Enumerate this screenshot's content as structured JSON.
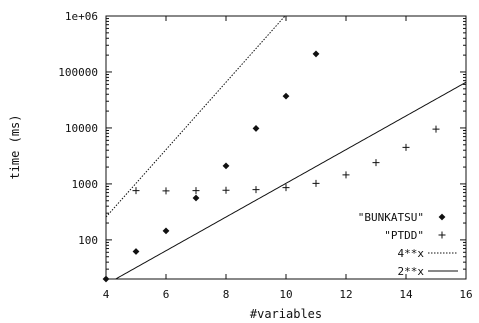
{
  "chart_data": {
    "type": "scatter",
    "title": "",
    "xlabel": "#variables",
    "ylabel": "time (ms)",
    "xlim": [
      4,
      16
    ],
    "ylim": [
      20,
      1000000
    ],
    "yscale": "log",
    "grid": false,
    "legend_position": "bottom-right",
    "x_ticks": [
      4,
      6,
      8,
      10,
      12,
      14,
      16
    ],
    "x_tick_labels": [
      "4",
      "6",
      "8",
      "10",
      "12",
      "14",
      "16"
    ],
    "y_ticks": [
      100,
      1000,
      10000,
      100000,
      1000000
    ],
    "y_tick_labels": [
      "100",
      "1000",
      "10000",
      "100000",
      "1e+06"
    ],
    "series": [
      {
        "name": "\"BUNKATSU\"",
        "marker": "diamond",
        "x": [
          4,
          5,
          6,
          7,
          8,
          9,
          10,
          11
        ],
        "y": [
          20,
          62,
          145,
          560,
          2100,
          9800,
          37000,
          210000
        ]
      },
      {
        "name": "\"PTDD\"",
        "marker": "plus",
        "x": [
          5,
          6,
          7,
          8,
          9,
          10,
          11,
          12,
          13,
          14,
          15
        ],
        "y": [
          760,
          750,
          760,
          770,
          790,
          860,
          1020,
          1450,
          2400,
          4500,
          9500
        ]
      },
      {
        "name": "4**x",
        "style": "dotted",
        "function": "4**x",
        "x": [
          4,
          5,
          6,
          7,
          8,
          9,
          10
        ],
        "y": [
          256,
          1024,
          4096,
          16384,
          65536,
          262144,
          1048576
        ]
      },
      {
        "name": "2**x",
        "style": "solid",
        "function": "2**x",
        "x": [
          4,
          6,
          8,
          10,
          12,
          14,
          16
        ],
        "y": [
          16,
          64,
          256,
          1024,
          4096,
          16384,
          65536
        ]
      }
    ]
  }
}
